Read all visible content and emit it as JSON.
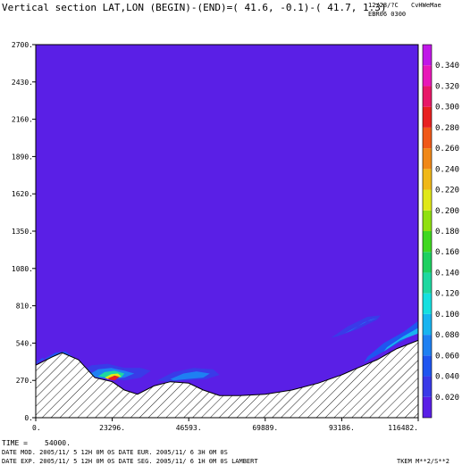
{
  "header": {
    "title": "Vertical section LAT,LON (BEGIN)-(END)=( 41.6, -0.1)-( 41.7,  1.3)",
    "date_code": "12/28/?C",
    "code2": "CvHWeMae",
    "run_code": "EBR06 0300"
  },
  "footer": {
    "time_label": "TIME =",
    "time_value": "54000.",
    "line1": "DATE MOD. 2005/11/ 5  12H 0M 0S   DATE EUR. 2005/11/ 6   3H 0M 0S",
    "line2": "DATE EXP. 2005/11/ 5  12H 0M 0S   DATE SEG. 2005/11/ 6   1H 0M 0S   LAMBERT",
    "variable": "TKEM M**2/S**2"
  },
  "colors": {
    "background_field": "#5a1fe6",
    "hatch": "#000000"
  },
  "chart_data": {
    "type": "heatmap",
    "title": "Vertical section LAT,LON (BEGIN)-(END)=( 41.6, -0.1)-( 41.7,  1.3)",
    "xlim": [
      0,
      116482
    ],
    "ylim": [
      0,
      2700
    ],
    "x_ticks": [
      "0.",
      "23296.",
      "46593.",
      "69889.",
      "93186.",
      "116482."
    ],
    "y_ticks": [
      "0.",
      "270.",
      "540.",
      "810.",
      "1080.",
      "1350.",
      "1620.",
      "1890.",
      "2160.",
      "2430.",
      "2700."
    ],
    "x_tick_values": [
      0,
      23296,
      46593,
      69889,
      93186,
      116482
    ],
    "y_tick_values": [
      0,
      270,
      540,
      810,
      1080,
      1350,
      1620,
      1890,
      2160,
      2430,
      2700
    ],
    "colorbar": {
      "labels": [
        "0.020",
        "0.040",
        "0.060",
        "0.080",
        "0.100",
        "0.120",
        "0.140",
        "0.160",
        "0.180",
        "0.200",
        "0.220",
        "0.240",
        "0.260",
        "0.280",
        "0.300",
        "0.320",
        "0.340"
      ],
      "values": [
        0.02,
        0.04,
        0.06,
        0.08,
        0.1,
        0.12,
        0.14,
        0.16,
        0.18,
        0.2,
        0.22,
        0.24,
        0.26,
        0.28,
        0.3,
        0.32,
        0.34
      ],
      "levels": [
        {
          "value": 0.0,
          "color": "#5a1fe6"
        },
        {
          "value": 0.02,
          "color": "#3a3ae8"
        },
        {
          "value": 0.04,
          "color": "#1f55f0"
        },
        {
          "value": 0.06,
          "color": "#1e80f2"
        },
        {
          "value": 0.08,
          "color": "#18b4f0"
        },
        {
          "value": 0.1,
          "color": "#16e0e0"
        },
        {
          "value": 0.12,
          "color": "#1ed8a0"
        },
        {
          "value": 0.14,
          "color": "#1ed060"
        },
        {
          "value": 0.16,
          "color": "#40d820"
        },
        {
          "value": 0.18,
          "color": "#90e010"
        },
        {
          "value": 0.2,
          "color": "#e0e818"
        },
        {
          "value": 0.22,
          "color": "#f0b818"
        },
        {
          "value": 0.24,
          "color": "#f08818"
        },
        {
          "value": 0.26,
          "color": "#f05818"
        },
        {
          "value": 0.28,
          "color": "#e82020"
        },
        {
          "value": 0.3,
          "color": "#e81868"
        },
        {
          "value": 0.32,
          "color": "#e818b8"
        },
        {
          "value": 0.34,
          "color": "#c018e8"
        }
      ]
    },
    "terrain": {
      "x": [
        0,
        5000,
        8000,
        13000,
        18000,
        23296,
        27000,
        31000,
        36000,
        41000,
        46593,
        51000,
        56000,
        62000,
        69889,
        78000,
        86000,
        93186,
        98000,
        104000,
        110000,
        116482
      ],
      "y": [
        380,
        440,
        470,
        420,
        290,
        260,
        200,
        170,
        230,
        260,
        250,
        200,
        160,
        160,
        170,
        200,
        250,
        310,
        360,
        420,
        500,
        560
      ]
    },
    "features": [
      {
        "x": [
          0,
          6000,
          9000,
          13000,
          12000,
          7000,
          2000,
          0
        ],
        "y": [
          390,
          470,
          480,
          410,
          330,
          400,
          430,
          400
        ],
        "level": 0.04
      },
      {
        "x": [
          13500,
          17000,
          22000,
          27000,
          32000,
          35000,
          32000,
          27000,
          22000,
          17000
        ],
        "y": [
          330,
          380,
          390,
          360,
          360,
          340,
          290,
          270,
          290,
          300
        ],
        "level": 0.02
      },
      {
        "x": [
          16000,
          19000,
          23000,
          27000,
          30000,
          27000,
          23000,
          19000
        ],
        "y": [
          310,
          350,
          360,
          340,
          320,
          290,
          280,
          290
        ],
        "level": 0.06
      },
      {
        "x": [
          19000,
          21000,
          24000,
          27000,
          26000,
          22000
        ],
        "y": [
          300,
          330,
          340,
          320,
          290,
          290
        ],
        "level": 0.12
      },
      {
        "x": [
          21000,
          23000,
          25000,
          26000,
          24000,
          22000
        ],
        "y": [
          290,
          315,
          320,
          300,
          280,
          280
        ],
        "level": 0.2
      },
      {
        "x": [
          22000,
          24000,
          25500,
          24000,
          22500
        ],
        "y": [
          285,
          305,
          295,
          270,
          275
        ],
        "level": 0.28
      },
      {
        "x": [
          37000,
          42000,
          48000,
          54000,
          56000,
          52000,
          46000,
          40000
        ],
        "y": [
          270,
          330,
          360,
          350,
          310,
          280,
          270,
          260
        ],
        "level": 0.02
      },
      {
        "x": [
          41000,
          45000,
          49000,
          53000,
          51000,
          46000,
          42000
        ],
        "y": [
          280,
          320,
          335,
          320,
          290,
          280,
          270
        ],
        "level": 0.06
      },
      {
        "x": [
          90000,
          95000,
          101000,
          105000,
          104000,
          98000,
          92000
        ],
        "y": [
          580,
          660,
          730,
          740,
          710,
          640,
          590
        ],
        "level": 0.02
      },
      {
        "x": [
          94000,
          98000,
          102000,
          104000,
          100000,
          96000
        ],
        "y": [
          610,
          660,
          710,
          720,
          690,
          630
        ],
        "level": 0.06
      },
      {
        "x": [
          100000,
          106000,
          112000,
          116482,
          116482,
          112000,
          106000,
          101000
        ],
        "y": [
          400,
          480,
          560,
          650,
          700,
          620,
          540,
          440
        ],
        "level": 0.04
      },
      {
        "x": [
          106000,
          111000,
          116482,
          116482,
          112000,
          107000
        ],
        "y": [
          480,
          560,
          610,
          650,
          590,
          510
        ],
        "level": 0.08
      }
    ]
  }
}
